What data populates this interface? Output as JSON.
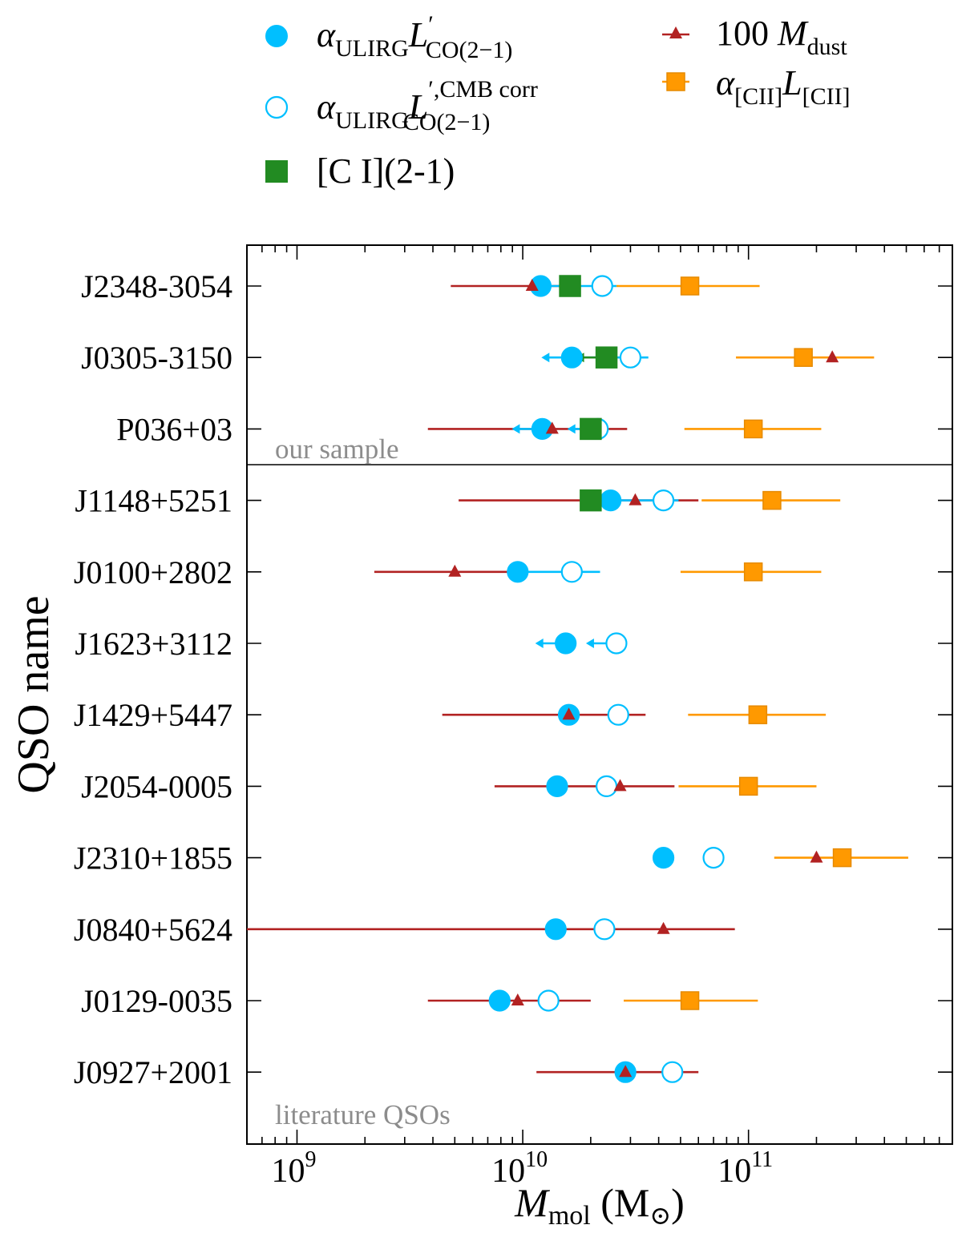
{
  "chart_data": {
    "type": "scatter",
    "x_scale": "log",
    "xlim": [
      600000000.0,
      800000000000.0
    ],
    "xlabel": "M_mol (M_sun)",
    "xlabel_main": "M",
    "xlabel_sub": "mol",
    "xlabel_unit": "(M",
    "xlabel_unit_close": ")",
    "ylabel": "QSO name",
    "xticks": [
      {
        "value": 1000000000.0,
        "base": "10",
        "exp": "9"
      },
      {
        "value": 10000000000.0,
        "base": "10",
        "exp": "10"
      },
      {
        "value": 100000000000.0,
        "base": "10",
        "exp": "11"
      }
    ],
    "section_labels": {
      "top": "our sample",
      "bottom": "literature QSOs"
    },
    "colors": {
      "co": "#00bfff",
      "ci": "#228b22",
      "dust": "#b22222",
      "cii": "#ff9900",
      "section_label": "#8c8c8c"
    },
    "legend": {
      "co": {
        "base": "α",
        "sub1": "ULIRG",
        "L": "L",
        "sup": "′",
        "sub2": "CO(2−1)"
      },
      "co_cmb": {
        "base": "α",
        "sub1": "ULIRG",
        "L": "L",
        "sup": "′,CMB corr",
        "sub2": "CO(2−1)"
      },
      "ci": {
        "label": "[C I](2-1)"
      },
      "dust": {
        "pre": "100 ",
        "M": "M",
        "sub": "dust"
      },
      "cii": {
        "base": "α",
        "sub1": "[CII]",
        "L": "L",
        "sub2": "[CII]"
      }
    },
    "qsos": [
      {
        "name": "J2348-3054",
        "sample": "ours",
        "co": 12000000000.0,
        "co_ul": false,
        "co_cmb": 22500000000.0,
        "co_cmb_ul": false,
        "co_range": [
          12000000000.0,
          26000000000.0
        ],
        "ci": 16200000000.0,
        "ci_ul": false,
        "dust": 11000000000.0,
        "dust_range": [
          4800000000.0,
          16000000000.0
        ],
        "cii": 55000000000.0,
        "cii_range": [
          26000000000.0,
          112000000000.0
        ]
      },
      {
        "name": "J0305-3150",
        "sample": "ours",
        "co": 16500000000.0,
        "co_ul": true,
        "co_cmb": 30000000000.0,
        "co_cmb_ul": false,
        "co_range": [
          16500000000.0,
          36000000000.0
        ],
        "ci": 23500000000.0,
        "ci_ul": true,
        "dust": 235000000000.0,
        "dust_range": null,
        "cii": 175000000000.0,
        "cii_range": [
          88000000000.0,
          360000000000.0
        ]
      },
      {
        "name": "P036+03",
        "sample": "ours",
        "co": 12200000000.0,
        "co_ul": true,
        "co_cmb": 21500000000.0,
        "co_cmb_ul": true,
        "co_range": null,
        "ci": 20000000000.0,
        "ci_ul": false,
        "dust": 13500000000.0,
        "dust_range": [
          3800000000.0,
          29000000000.0
        ],
        "cii": 105000000000.0,
        "cii_range": [
          52000000000.0,
          210000000000.0
        ]
      },
      {
        "name": "J1148+5251",
        "sample": "literature",
        "co": 24500000000.0,
        "co_ul": false,
        "co_cmb": 42000000000.0,
        "co_cmb_ul": false,
        "co_range": [
          20000000000.0,
          49000000000.0
        ],
        "ci": 20000000000.0,
        "ci_ul": false,
        "dust": 31500000000.0,
        "dust_range": [
          5200000000.0,
          60000000000.0
        ],
        "cii": 127000000000.0,
        "cii_range": [
          62000000000.0,
          255000000000.0
        ]
      },
      {
        "name": "J0100+2802",
        "sample": "literature",
        "co": 9500000000.0,
        "co_ul": false,
        "co_cmb": 16500000000.0,
        "co_cmb_ul": false,
        "co_range": [
          9500000000.0,
          22000000000.0
        ],
        "ci": null,
        "ci_ul": false,
        "dust": 5000000000.0,
        "dust_range": [
          2200000000.0,
          9500000000.0
        ],
        "cii": 105000000000.0,
        "cii_range": [
          50000000000.0,
          210000000000.0
        ]
      },
      {
        "name": "J1623+3112",
        "sample": "literature",
        "co": 15500000000.0,
        "co_ul": true,
        "co_cmb": 26000000000.0,
        "co_cmb_ul": true,
        "co_range": null,
        "ci": null,
        "ci_ul": false,
        "dust": null,
        "dust_range": null,
        "cii": null,
        "cii_range": null
      },
      {
        "name": "J1429+5447",
        "sample": "literature",
        "co": 16000000000.0,
        "co_ul": false,
        "co_cmb": 26500000000.0,
        "co_cmb_ul": false,
        "co_range": null,
        "ci": null,
        "ci_ul": false,
        "dust": 16000000000.0,
        "dust_range": [
          4400000000.0,
          35000000000.0
        ],
        "cii": 110000000000.0,
        "cii_range": [
          54000000000.0,
          220000000000.0
        ]
      },
      {
        "name": "J2054-0005",
        "sample": "literature",
        "co": 14200000000.0,
        "co_ul": false,
        "co_cmb": 23500000000.0,
        "co_cmb_ul": false,
        "co_range": null,
        "ci": null,
        "ci_ul": false,
        "dust": 27000000000.0,
        "dust_range": [
          7500000000.0,
          47000000000.0
        ],
        "cii": 100000000000.0,
        "cii_range": [
          49000000000.0,
          200000000000.0
        ]
      },
      {
        "name": "J2310+1855",
        "sample": "literature",
        "co": 42000000000.0,
        "co_ul": false,
        "co_cmb": 70000000000.0,
        "co_cmb_ul": false,
        "co_range": null,
        "ci": null,
        "ci_ul": false,
        "dust": 200000000000.0,
        "dust_range": null,
        "cii": 260000000000.0,
        "cii_range": [
          130000000000.0,
          510000000000.0
        ]
      },
      {
        "name": "J0840+5624",
        "sample": "literature",
        "co": 14000000000.0,
        "co_ul": false,
        "co_cmb": 23000000000.0,
        "co_cmb_ul": false,
        "co_range": null,
        "ci": null,
        "ci_ul": false,
        "dust": 42000000000.0,
        "dust_range": [
          600000000.0,
          87000000000.0
        ],
        "cii": null,
        "cii_range": null
      },
      {
        "name": "J0129-0035",
        "sample": "literature",
        "co": 7900000000.0,
        "co_ul": false,
        "co_cmb": 13000000000.0,
        "co_cmb_ul": false,
        "co_range": null,
        "ci": null,
        "ci_ul": false,
        "dust": 9500000000.0,
        "dust_range": [
          3800000000.0,
          20000000000.0
        ],
        "cii": 55000000000.0,
        "cii_range": [
          28000000000.0,
          110000000000.0
        ]
      },
      {
        "name": "J0927+2001",
        "sample": "literature",
        "co": 28500000000.0,
        "co_ul": false,
        "co_cmb": 46000000000.0,
        "co_cmb_ul": false,
        "co_range": null,
        "ci": null,
        "ci_ul": false,
        "dust": 28500000000.0,
        "dust_range": [
          11500000000.0,
          60000000000.0
        ],
        "cii": null,
        "cii_range": null
      }
    ]
  }
}
